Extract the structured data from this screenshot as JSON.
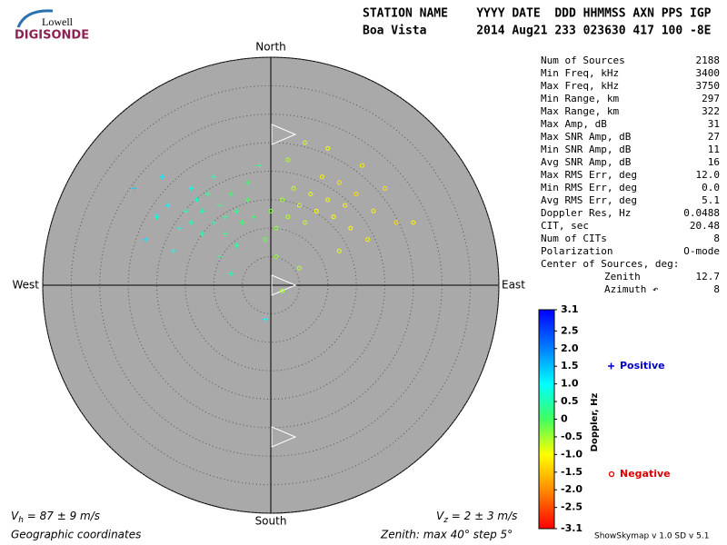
{
  "logo": {
    "top": "Lowell",
    "bottom": "DIGISONDE"
  },
  "header": {
    "line1": "STATION NAME    YYYY DATE  DDD HHMMSS AXN PPS IGP",
    "line2": "Boa Vista       2014 Aug21 233 023630 417 100 -8E"
  },
  "stats": {
    "rows": [
      [
        "Num of Sources",
        "2188"
      ],
      [
        "Min Freq, kHz",
        "3400"
      ],
      [
        "Max Freq, kHz",
        "3750"
      ],
      [
        "Min Range, km",
        "297"
      ],
      [
        "Max Range, km",
        "322"
      ],
      [
        "Max Amp, dB",
        "31"
      ],
      [
        "Max SNR Amp, dB",
        "27"
      ],
      [
        "Min SNR Amp, dB",
        "11"
      ],
      [
        "Avg SNR Amp, dB",
        "16"
      ],
      [
        "Max RMS Err, deg",
        "12.0"
      ],
      [
        "Min RMS Err, deg",
        "0.0"
      ],
      [
        "Avg RMS Err, deg",
        "5.1"
      ],
      [
        "Doppler Res, Hz",
        "0.0488"
      ],
      [
        "CIT, sec",
        "20.48"
      ],
      [
        "Num of CITs",
        "8"
      ],
      [
        "Polarization",
        "O-mode"
      ]
    ],
    "center_title": "Center of Sources, deg:",
    "center_rows": [
      [
        "Zenith",
        "12.7"
      ],
      [
        "Azimuth ↶",
        "8"
      ]
    ]
  },
  "footer": {
    "vh": {
      "symbol": "V",
      "sub": "h",
      "text": " = 87 ± 9 m/s"
    },
    "vz": {
      "symbol": "V",
      "sub": "z",
      "text": " = 2 ± 3 m/s"
    },
    "coords": "Geographic coordinates",
    "zenith": "Zenith: max 40°  step 5°",
    "version": "ShowSkymap v 1.0   SD v 5.1"
  },
  "chart_data": {
    "type": "skymap",
    "directions": {
      "north": "North",
      "south": "South",
      "east": "East",
      "west": "West"
    },
    "zlim": [
      0,
      40
    ],
    "zticks": [
      5,
      10,
      15,
      20,
      25,
      30,
      35,
      40
    ],
    "background": "#a9a9a9",
    "colorbar": {
      "label": "Doppler, Hz",
      "clim": [
        -3.1,
        3.1
      ],
      "ticks": [
        3.1,
        2.5,
        {
          "value": 2,
          "label": "2.0"
        },
        1.5,
        {
          "value": 1,
          "label": "1.0"
        },
        0.5,
        0,
        -0.5,
        {
          "value": -1,
          "label": "-1.0"
        },
        -1.5,
        {
          "value": -2,
          "label": "-2.0"
        },
        -2.5,
        -3.1
      ],
      "stops": [
        [
          -3.1,
          "#ff0000"
        ],
        [
          -2,
          "#ff8c00"
        ],
        [
          -1,
          "#ffff00"
        ],
        [
          0,
          "#40ff60"
        ],
        [
          1,
          "#00ffff"
        ],
        [
          2,
          "#0080ff"
        ],
        [
          3.1,
          "#0000ff"
        ]
      ]
    },
    "series": [
      {
        "name": "Positive",
        "marker": "plus",
        "color": "#0000cc",
        "x": [
          -20,
          -18,
          -16,
          -15,
          -14,
          -13,
          -12,
          -12,
          -11,
          -10,
          -9,
          -8,
          -8,
          -7,
          -6,
          -5,
          -4,
          -3,
          -22,
          -24,
          -19,
          -17,
          -10,
          -6,
          -2,
          -7,
          -1,
          -9,
          -4,
          -14
        ],
        "y": [
          12,
          14,
          10,
          13,
          11,
          15,
          9,
          13,
          16,
          11,
          14,
          12,
          9,
          16,
          13,
          11,
          15,
          12,
          8,
          17,
          19,
          6,
          19,
          7,
          21,
          2,
          -6,
          5,
          18,
          17
        ],
        "doppler": [
          0.8,
          1.0,
          0.9,
          0.6,
          0.5,
          0.7,
          0.4,
          0.6,
          0.3,
          0.5,
          0.2,
          0.4,
          0.3,
          0.1,
          0.2,
          0.1,
          0.0,
          0.1,
          1.2,
          1.3,
          1.1,
          0.8,
          0.6,
          0.3,
          0.4,
          0.5,
          1.0,
          0.2,
          0.1,
          0.9
        ]
      },
      {
        "name": "Negative",
        "marker": "circle",
        "color": "#dd0000",
        "x": [
          0,
          1,
          2,
          3,
          4,
          5,
          6,
          7,
          8,
          9,
          10,
          11,
          12,
          13,
          14,
          15,
          16,
          18,
          20,
          22,
          25,
          3,
          6,
          10,
          1,
          5,
          2,
          -1,
          12,
          17
        ],
        "y": [
          13,
          10,
          15,
          12,
          17,
          14,
          11,
          16,
          13,
          19,
          15,
          12,
          18,
          14,
          10,
          16,
          21,
          13,
          17,
          11,
          11,
          22,
          25,
          24,
          5,
          3,
          -1,
          8,
          6,
          8
        ],
        "doppler": [
          -0.3,
          -0.4,
          -0.5,
          -0.6,
          -0.7,
          -0.8,
          -0.7,
          -0.9,
          -1.0,
          -1.1,
          -0.9,
          -1.0,
          -1.2,
          -1.1,
          -1.0,
          -1.3,
          -1.2,
          -1.1,
          -1.2,
          -1.3,
          -1.1,
          -0.6,
          -0.8,
          -1.0,
          -0.4,
          -0.6,
          -0.5,
          -0.2,
          -0.9,
          -1.1
        ]
      }
    ]
  }
}
